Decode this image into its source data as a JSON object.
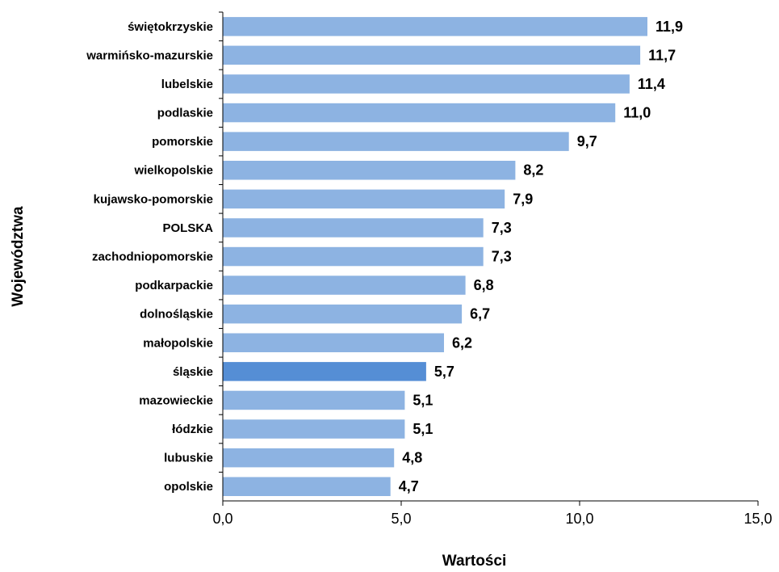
{
  "chart_data": {
    "type": "bar",
    "orientation": "horizontal",
    "categories": [
      "świętokrzyskie",
      "warmińsko-mazurskie",
      "lubelskie",
      "podlaskie",
      "pomorskie",
      "wielkopolskie",
      "kujawsko-pomorskie",
      "POLSKA",
      "zachodniopomorskie",
      "podkarpackie",
      "dolnośląskie",
      "małopolskie",
      "śląskie",
      "mazowieckie",
      "łódzkie",
      "lubuskie",
      "opolskie"
    ],
    "values": [
      11.9,
      11.7,
      11.4,
      11.0,
      9.7,
      8.2,
      7.9,
      7.3,
      7.3,
      6.8,
      6.7,
      6.2,
      5.7,
      5.1,
      5.1,
      4.8,
      4.7
    ],
    "value_labels": [
      "11,9",
      "11,7",
      "11,4",
      "11,0",
      "9,7",
      "8,2",
      "7,9",
      "7,3",
      "7,3",
      "6,8",
      "6,7",
      "6,2",
      "5,7",
      "5,1",
      "5,1",
      "4,8",
      "4,7"
    ],
    "xticks": [
      {
        "value": 0,
        "label": "0,0"
      },
      {
        "value": 5,
        "label": "5,0"
      },
      {
        "value": 10,
        "label": "10,0"
      },
      {
        "value": 15,
        "label": "15,0"
      }
    ],
    "xlim": [
      0,
      15
    ],
    "xlabel": "Wartości",
    "ylabel": "Województwa",
    "grid": false,
    "colors": {
      "bar": "#8db3e2",
      "highlight": "#558ed5"
    },
    "highlight_category": "śląskie"
  }
}
